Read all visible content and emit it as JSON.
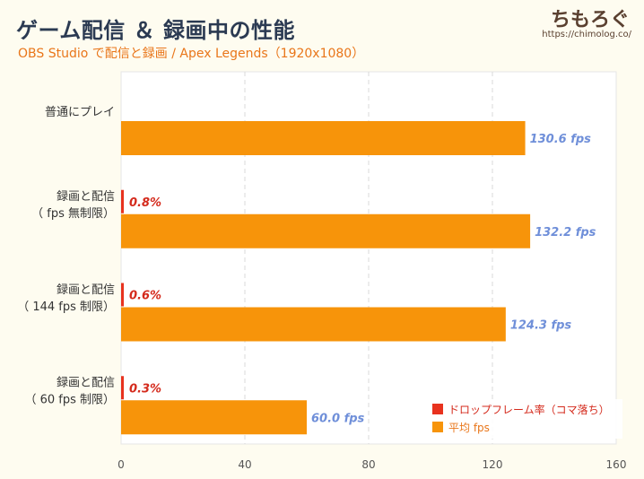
{
  "header": {
    "title": "ゲーム配信 ＆ 録画中の性能",
    "subtitle": "OBS Studio で配信と録画 / Apex Legends（1920x1080）",
    "brand": "ちもろぐ",
    "brand_url": "https://chimolog.co/"
  },
  "chart_data": {
    "type": "bar",
    "orientation": "horizontal",
    "categories": [
      [
        "普通にプレイ"
      ],
      [
        "録画と配信",
        "（ fps 無制限）"
      ],
      [
        "録画と配信",
        "（ 144 fps 制限）"
      ],
      [
        "録画と配信",
        "（ 60 fps 制限）"
      ]
    ],
    "series": [
      {
        "name": "ドロップフレーム率（コマ落ち）",
        "color": "#e8321e",
        "values": [
          null,
          0.8,
          0.6,
          0.3
        ],
        "labels": [
          "",
          "0.8%",
          "0.6%",
          "0.3%"
        ]
      },
      {
        "name": "平均 fps",
        "color": "#f7940a",
        "values": [
          130.6,
          132.2,
          124.3,
          60.0
        ],
        "labels": [
          "130.6 fps",
          "132.2 fps",
          "124.3 fps",
          "60.0 fps"
        ]
      }
    ],
    "xlim": [
      0,
      160
    ],
    "xticks": [
      0,
      40,
      80,
      120,
      160
    ],
    "grid": true,
    "legend_position": "bottom-right"
  }
}
